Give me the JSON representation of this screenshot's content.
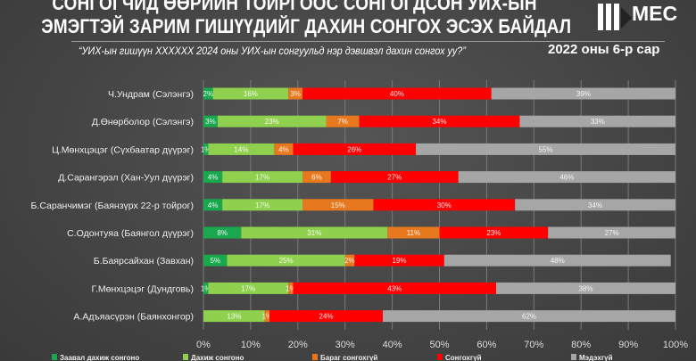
{
  "header": {
    "title_line1": "СОНГОГЧИД ӨӨРИЙН ТОЙРГООС СОНГОГДСОН УИХ-ЫН",
    "title_line2": "ЭМЭГТЭЙ ЗАРИМ ГИШҮҮДИЙГ ДАХИН СОНГОХ ЭСЭХ БАЙДАЛ",
    "question": "“УИХ-ын гишүүн XXXXXX 2024 оны УИХ-ын сонгуульд нэр дэвшвэл дахин сонгох уу?”",
    "date": "2022 оны 6-р сар",
    "logo_text": "MEC"
  },
  "chart_data": {
    "type": "bar",
    "orientation": "horizontal",
    "stacked": true,
    "categories": [
      "Ч.Ундрам (Сэлэнгэ)",
      "Д.Өнөрболор (Сэлэнгэ)",
      "Ц.Мөнхцэцэг (Сүхбаатар дүүрэг)",
      "Д.Сарангэрэл (Хан-Уул дүүрэг)",
      "Б.Саранчимэг (Баянзүрх 22-р тойрог)",
      "С.Одонтуяа (Баянгол дүүрэг)",
      "Б.Баярсайхан (Завхан)",
      "Г.Мөнхцэцэг (Дундговь)",
      "А.Адъяасүрэн (Баянхонгор)"
    ],
    "series": [
      {
        "name": "Заавал дахиж сонгоно",
        "color": "#1aa84f",
        "values": [
          2,
          3,
          1,
          4,
          4,
          8,
          5,
          1,
          0
        ]
      },
      {
        "name": "Дахиж сонгоно",
        "color": "#8fd14f",
        "values": [
          16,
          23,
          14,
          17,
          17,
          31,
          25,
          17,
          13
        ]
      },
      {
        "name": "Бараг сонгохгүй",
        "color": "#e8781e",
        "values": [
          3,
          7,
          4,
          6,
          15,
          11,
          2,
          1,
          1
        ]
      },
      {
        "name": "Сонгохгүй",
        "color": "#ff0000",
        "values": [
          40,
          34,
          26,
          27,
          30,
          23,
          19,
          43,
          24
        ]
      },
      {
        "name": "Мэдэхгүй",
        "color": "#a6a6a6",
        "values": [
          39,
          33,
          55,
          46,
          34,
          27,
          48,
          38,
          62
        ]
      }
    ],
    "xlim": [
      0,
      100
    ],
    "xticks": [
      "0%",
      "10%",
      "20%",
      "30%",
      "40%",
      "50%",
      "60%",
      "70%",
      "80%",
      "90%",
      "100%"
    ],
    "grid": true,
    "legend": "bottom"
  }
}
